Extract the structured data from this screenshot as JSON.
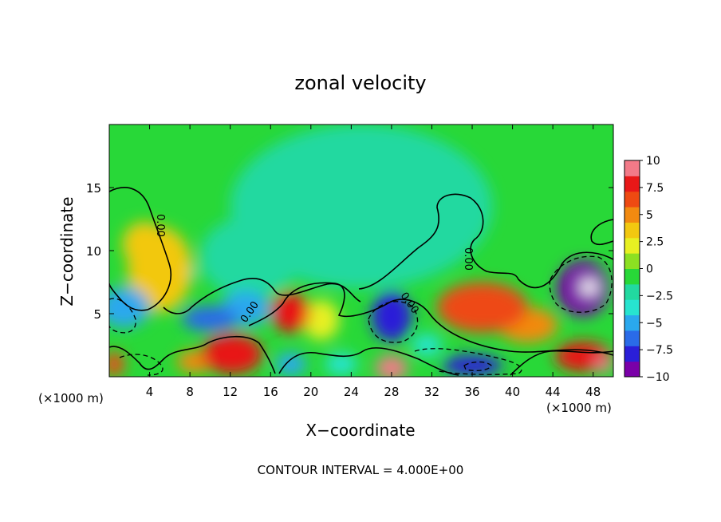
{
  "chart_data": {
    "type": "heatmap",
    "title": "zonal velocity",
    "xlabel": "X−coordinate",
    "ylabel": "Z−coordinate",
    "x_unit_left": "(×1000 m)",
    "x_unit_right": "(×1000 m)",
    "footer": "CONTOUR INTERVAL = 4.000E+00",
    "xlim": [
      0,
      50
    ],
    "ylim": [
      0,
      20
    ],
    "x_ticks": [
      4,
      8,
      12,
      16,
      20,
      24,
      28,
      32,
      36,
      40,
      44,
      48
    ],
    "y_ticks": [
      5,
      10,
      15
    ],
    "colorbar": {
      "ticks": [
        "10",
        "7.5",
        "5",
        "2.5",
        "0",
        "−2.5",
        "−5",
        "−7.5",
        "−10"
      ],
      "range": [
        -10,
        10
      ],
      "colors": [
        "#7a00a8",
        "#2a1fd8",
        "#2a6be8",
        "#2aa8ee",
        "#27e4d0",
        "#22d9a0",
        "#28d838",
        "#8ce022",
        "#e8f022",
        "#f2c810",
        "#f28a10",
        "#ee4a12",
        "#e81818",
        "#f27a88"
      ]
    },
    "contour_labels": [
      "0.00",
      "0.00",
      "0.00",
      "0.00"
    ],
    "field_blobs": [
      {
        "x": 25,
        "y": 13.5,
        "rx": 13,
        "ry": 6.5,
        "v": -1.6
      },
      {
        "x": 14,
        "y": 9.5,
        "rx": 5,
        "ry": 3.2,
        "v": -2.6
      },
      {
        "x": 22,
        "y": 10.8,
        "rx": 6,
        "ry": 2.6,
        "v": -2.2
      },
      {
        "x": 29,
        "y": 9.5,
        "rx": 4,
        "ry": 2.0,
        "v": -1.6
      },
      {
        "x": 5,
        "y": 8.5,
        "rx": 3.2,
        "ry": 3.4,
        "v": 3.8
      },
      {
        "x": 3.5,
        "y": 10.5,
        "rx": 2.2,
        "ry": 1.8,
        "v": 3.0
      },
      {
        "x": 1.5,
        "y": 5.5,
        "rx": 2.5,
        "ry": 1.6,
        "v": -5.5
      },
      {
        "x": 10,
        "y": 4.6,
        "rx": 2.8,
        "ry": 1.0,
        "v": -7.0
      },
      {
        "x": 13.5,
        "y": 5.4,
        "rx": 2.5,
        "ry": 1.4,
        "v": -5.5
      },
      {
        "x": 18,
        "y": 5.1,
        "rx": 1.9,
        "ry": 1.6,
        "v": 8.5
      },
      {
        "x": 21,
        "y": 4.5,
        "rx": 1.8,
        "ry": 1.6,
        "v": 2.8
      },
      {
        "x": 28,
        "y": 4.8,
        "rx": 2.0,
        "ry": 2.0,
        "v": -7.5
      },
      {
        "x": 37,
        "y": 5.5,
        "rx": 4.5,
        "ry": 2.0,
        "v": 6.0
      },
      {
        "x": 41.5,
        "y": 4.1,
        "rx": 3.0,
        "ry": 1.4,
        "v": 5.5
      },
      {
        "x": 47,
        "y": 7.0,
        "rx": 2.6,
        "ry": 2.2,
        "v": -9.0
      },
      {
        "x": 47.6,
        "y": 7.1,
        "rx": 0.9,
        "ry": 0.6,
        "v": -11.5
      },
      {
        "x": 12.2,
        "y": 1.8,
        "rx": 3.0,
        "ry": 1.6,
        "v": 7.5
      },
      {
        "x": 8.5,
        "y": 1.2,
        "rx": 1.8,
        "ry": 0.9,
        "v": 5.5
      },
      {
        "x": 0.5,
        "y": 1.0,
        "rx": 1.0,
        "ry": 1.0,
        "v": 7.0
      },
      {
        "x": 18,
        "y": 1.0,
        "rx": 1.5,
        "ry": 0.9,
        "v": -5.0
      },
      {
        "x": 23,
        "y": 1.0,
        "rx": 1.6,
        "ry": 0.9,
        "v": -3.5
      },
      {
        "x": 28,
        "y": 0.7,
        "rx": 1.6,
        "ry": 1.0,
        "v": 9.5
      },
      {
        "x": 36,
        "y": 0.9,
        "rx": 3.0,
        "ry": 0.8,
        "v": -7.5
      },
      {
        "x": 31.5,
        "y": 2.5,
        "rx": 1.5,
        "ry": 0.9,
        "v": -3.5
      },
      {
        "x": 47,
        "y": 1.6,
        "rx": 2.8,
        "ry": 1.2,
        "v": 8.5
      },
      {
        "x": 49,
        "y": 1.0,
        "rx": 0.9,
        "ry": 0.7,
        "v": 10.0
      },
      {
        "x": 7,
        "y": 8.3,
        "rx": 1.8,
        "ry": 0.7,
        "v": -3.0
      }
    ]
  }
}
